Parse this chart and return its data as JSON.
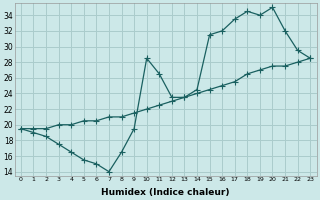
{
  "xlabel": "Humidex (Indice chaleur)",
  "bg_color": "#cce8e8",
  "grid_color": "#aacccc",
  "line_color": "#1a6060",
  "xlim": [
    -0.5,
    23.5
  ],
  "ylim": [
    13.5,
    35.5
  ],
  "yticks": [
    14,
    16,
    18,
    20,
    22,
    24,
    26,
    28,
    30,
    32,
    34
  ],
  "xticks": [
    0,
    1,
    2,
    3,
    4,
    5,
    6,
    7,
    8,
    9,
    10,
    11,
    12,
    13,
    14,
    15,
    16,
    17,
    18,
    19,
    20,
    21,
    22,
    23
  ],
  "series1_x": [
    0,
    1,
    2,
    3,
    4,
    5,
    6,
    7,
    8,
    9,
    10,
    11,
    12,
    13,
    14,
    15,
    16,
    17,
    18,
    19,
    20,
    21,
    22,
    23
  ],
  "series1_y": [
    19.5,
    19.0,
    18.5,
    17.5,
    16.5,
    15.5,
    15.0,
    14.0,
    16.5,
    19.5,
    28.5,
    26.5,
    23.5,
    23.5,
    24.5,
    31.5,
    32.0,
    33.5,
    34.5,
    34.0,
    35.0,
    32.0,
    29.5,
    28.5
  ],
  "series2_x": [
    0,
    1,
    2,
    3,
    4,
    5,
    6,
    7,
    8,
    9,
    10,
    11,
    12,
    13,
    14,
    15,
    16,
    17,
    18,
    19,
    20,
    21,
    22,
    23
  ],
  "series2_y": [
    19.5,
    19.5,
    19.5,
    20.0,
    20.0,
    20.5,
    20.5,
    21.0,
    21.0,
    21.5,
    22.0,
    22.5,
    23.0,
    23.5,
    24.0,
    24.5,
    25.0,
    25.5,
    26.5,
    27.0,
    27.5,
    27.5,
    28.0,
    28.5
  ]
}
